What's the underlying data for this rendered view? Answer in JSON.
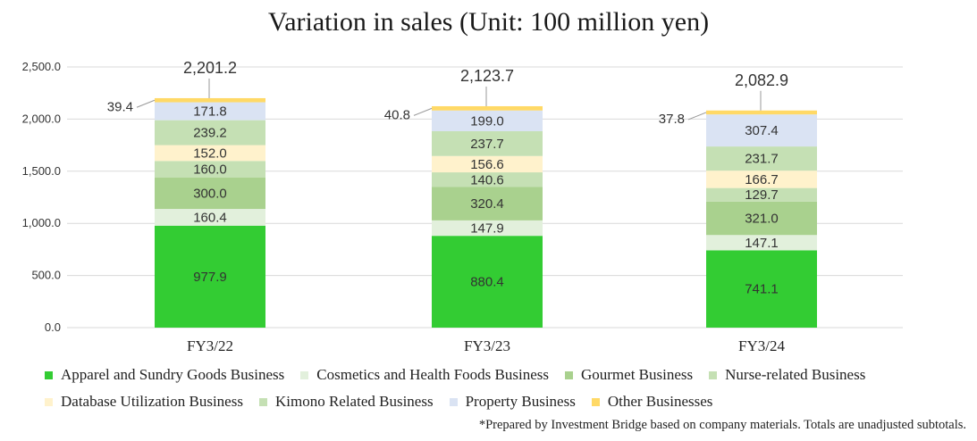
{
  "chart_data": {
    "type": "bar",
    "stacked": true,
    "title": "Variation in sales (Unit: 100 million yen)",
    "categories": [
      "FY3/22",
      "FY3/23",
      "FY3/24"
    ],
    "ylim": [
      0,
      2500
    ],
    "yticks": [
      "0.0",
      "500.0",
      "1,000.0",
      "1,500.0",
      "2,000.0",
      "2,500.0"
    ],
    "grid": true,
    "legend_position": "bottom",
    "series": [
      {
        "name": "Apparel and Sundry Goods Business",
        "values": [
          977.9,
          880.4,
          741.1
        ],
        "labels": [
          "977.9",
          "880.4",
          "741.1"
        ],
        "color": "#33cc33"
      },
      {
        "name": "Cosmetics and Health Foods Business",
        "values": [
          160.4,
          147.9,
          147.1
        ],
        "labels": [
          "160.4",
          "147.9",
          "147.1"
        ],
        "color": "#e2f0dc"
      },
      {
        "name": "Gourmet Business",
        "values": [
          300.0,
          320.4,
          321.0
        ],
        "labels": [
          "300.0",
          "320.4",
          "321.0"
        ],
        "color": "#a9d18e"
      },
      {
        "name": "Nurse-related Business",
        "values": [
          160.0,
          140.6,
          129.7
        ],
        "labels": [
          "160.0",
          "140.6",
          "129.7"
        ],
        "color": "#c5e0b4"
      },
      {
        "name": "Database Utilization Business",
        "values": [
          152.0,
          156.6,
          166.7
        ],
        "labels": [
          "152.0",
          "156.6",
          "166.7"
        ],
        "color": "#fff2cc"
      },
      {
        "name": "Kimono Related Business",
        "values": [
          239.2,
          237.7,
          231.7
        ],
        "labels": [
          "239.2",
          "237.7",
          "231.7"
        ],
        "color": "#c5e0b4"
      },
      {
        "name": "Property Business",
        "values": [
          171.8,
          199.0,
          307.4
        ],
        "labels": [
          "171.8",
          "199.0",
          "307.4"
        ],
        "color": "#dae3f3"
      },
      {
        "name": "Other Businesses",
        "values": [
          39.4,
          40.8,
          37.8
        ],
        "labels": [
          "39.4",
          "40.8",
          "37.8"
        ],
        "color": "#ffd966"
      }
    ],
    "totals": [
      2201.2,
      2123.7,
      2082.9
    ],
    "total_labels": [
      "2,201.2",
      "2,123.7",
      "2,082.9"
    ]
  },
  "legend": {
    "row1": [
      "Apparel and Sundry Goods Business",
      "Cosmetics and Health Foods Business",
      "Gourmet Business",
      "Nurse-related Business"
    ],
    "row2": [
      "Database Utilization Business",
      "Kimono Related Business",
      "Property Business",
      "Other Businesses"
    ]
  },
  "footnote": "*Prepared by Investment Bridge based on company materials. Totals are unadjusted subtotals."
}
